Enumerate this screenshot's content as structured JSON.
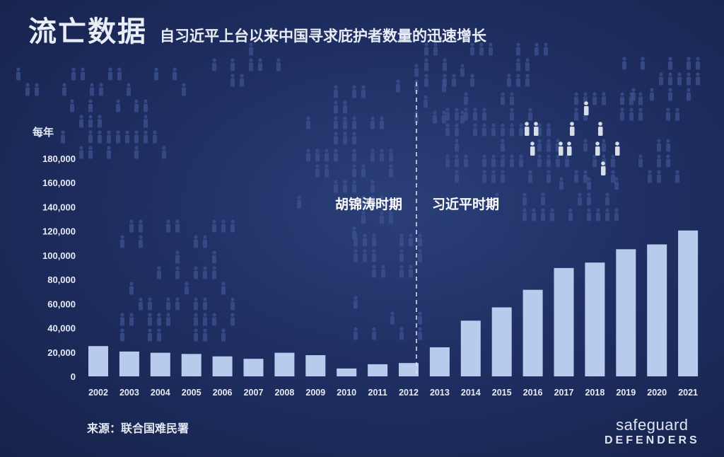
{
  "header": {
    "title": "流亡数据",
    "subtitle": "自习近平上台以来中国寻求庇护者数量的迅速增长"
  },
  "chart_data": {
    "type": "bar",
    "ylabel": "每年",
    "ylim": [
      0,
      180000
    ],
    "yticks": [
      0,
      20000,
      40000,
      60000,
      80000,
      100000,
      120000,
      140000,
      160000,
      180000
    ],
    "ytick_labels": [
      "0",
      "20,000",
      "40,000",
      "60,000",
      "80,000",
      "100,000",
      "120,000",
      "140,000",
      "160,000",
      "180,000"
    ],
    "categories": [
      "2002",
      "2003",
      "2004",
      "2005",
      "2006",
      "2007",
      "2008",
      "2009",
      "2010",
      "2011",
      "2012",
      "2013",
      "2014",
      "2015",
      "2016",
      "2017",
      "2018",
      "2019",
      "2020",
      "2021"
    ],
    "values": [
      25000,
      20500,
      19500,
      18500,
      16500,
      14500,
      19500,
      17500,
      6500,
      10000,
      11000,
      24000,
      46000,
      57000,
      71500,
      89500,
      94000,
      105000,
      109000,
      120500
    ],
    "bar_color": "#b7cbec",
    "annotations": [
      {
        "label": "胡锦涛时期"
      },
      {
        "label": "习近平时期"
      }
    ],
    "divider_after": "2012",
    "grid": false
  },
  "footer": {
    "source": "来源：联合国难民署",
    "logo_top": "safeguard",
    "logo_bottom": "DEFENDERS"
  }
}
